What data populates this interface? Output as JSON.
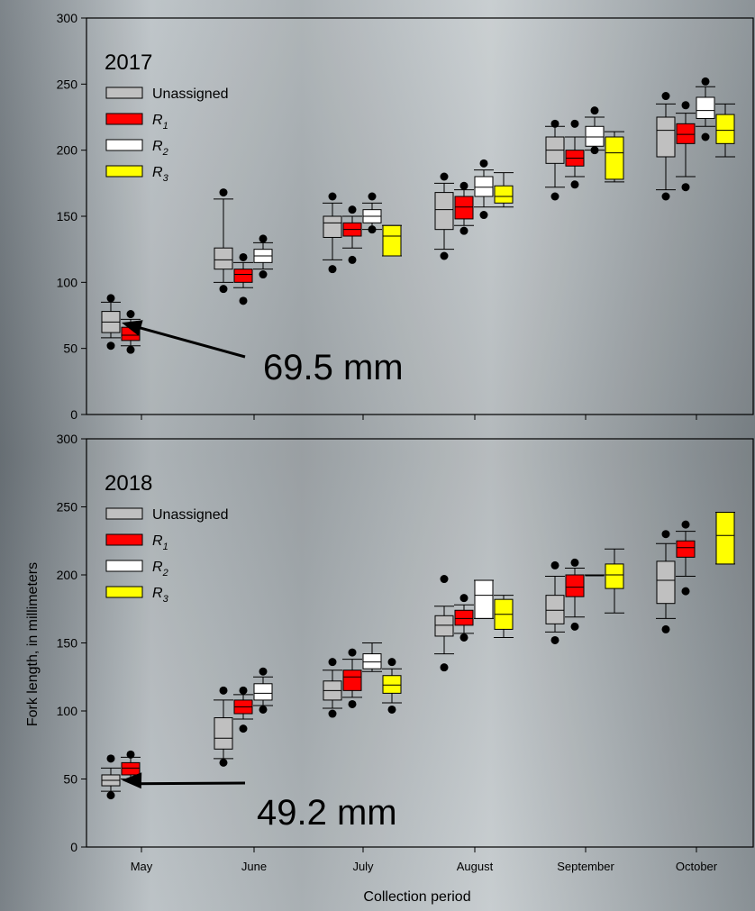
{
  "figure": {
    "ylabel": "Fork length, in millimeters",
    "xlabel": "Collection period",
    "colors": {
      "Unassigned": "#c0c0c0",
      "R1": "#ff0000",
      "R2": "#ffffff",
      "R3": "#ffff00"
    }
  },
  "legend_entries": [
    {
      "key": "Unassigned",
      "text": "Unassigned",
      "sub": ""
    },
    {
      "key": "R1",
      "text": "R",
      "sub": "1"
    },
    {
      "key": "R2",
      "text": "R",
      "sub": "2"
    },
    {
      "key": "R3",
      "text": "R",
      "sub": "3"
    }
  ],
  "chart_data": [
    {
      "type": "box",
      "title": "2017",
      "categories": [
        "May",
        "June",
        "July",
        "August",
        "September",
        "October"
      ],
      "yticks": [
        0,
        50,
        100,
        150,
        200,
        250,
        300
      ],
      "ylim": [
        0,
        300
      ],
      "annotation": {
        "text": "69.5 mm",
        "target": {
          "category": "May",
          "series": "Unassigned",
          "value": 69.5
        }
      },
      "series": [
        {
          "name": "Unassigned",
          "color": "#c0c0c0",
          "boxes": [
            {
              "category": "May",
              "q1": 62,
              "median": 70,
              "q3": 78,
              "whislo": 58,
              "whishi": 85,
              "fliers": [
                52,
                88
              ]
            },
            {
              "category": "June",
              "q1": 110,
              "median": 117,
              "q3": 126,
              "whislo": 100,
              "whishi": 163,
              "fliers": [
                95,
                168
              ]
            },
            {
              "category": "July",
              "q1": 134,
              "median": 145,
              "q3": 150,
              "whislo": 117,
              "whishi": 160,
              "fliers": [
                110,
                165
              ]
            },
            {
              "category": "August",
              "q1": 140,
              "median": 155,
              "q3": 168,
              "whislo": 125,
              "whishi": 175,
              "fliers": [
                120,
                180
              ]
            },
            {
              "category": "September",
              "q1": 190,
              "median": 200,
              "q3": 210,
              "whislo": 172,
              "whishi": 218,
              "fliers": [
                165,
                220
              ]
            },
            {
              "category": "October",
              "q1": 195,
              "median": 215,
              "q3": 225,
              "whislo": 170,
              "whishi": 235,
              "fliers": [
                165,
                241
              ]
            }
          ]
        },
        {
          "name": "R1",
          "color": "#ff0000",
          "boxes": [
            {
              "category": "May",
              "q1": 56,
              "median": 60,
              "q3": 66,
              "whislo": 52,
              "whishi": 72,
              "fliers": [
                49,
                76
              ]
            },
            {
              "category": "June",
              "q1": 100,
              "median": 106,
              "q3": 110,
              "whislo": 96,
              "whishi": 115,
              "fliers": [
                86,
                119
              ]
            },
            {
              "category": "July",
              "q1": 135,
              "median": 140,
              "q3": 145,
              "whislo": 126,
              "whishi": 150,
              "fliers": [
                117,
                155
              ]
            },
            {
              "category": "August",
              "q1": 148,
              "median": 157,
              "q3": 165,
              "whislo": 143,
              "whishi": 170,
              "fliers": [
                139,
                173
              ]
            },
            {
              "category": "September",
              "q1": 188,
              "median": 194,
              "q3": 200,
              "whislo": 180,
              "whishi": 210,
              "fliers": [
                174,
                220
              ]
            },
            {
              "category": "October",
              "q1": 205,
              "median": 212,
              "q3": 220,
              "whislo": 180,
              "whishi": 228,
              "fliers": [
                172,
                234
              ]
            }
          ]
        },
        {
          "name": "R2",
          "color": "#ffffff",
          "boxes": [
            {
              "category": "June",
              "q1": 115,
              "median": 120,
              "q3": 125,
              "whislo": 110,
              "whishi": 130,
              "fliers": [
                106,
                133
              ]
            },
            {
              "category": "July",
              "q1": 145,
              "median": 150,
              "q3": 155,
              "whislo": 140,
              "whishi": 160,
              "fliers": [
                140,
                165
              ]
            },
            {
              "category": "August",
              "q1": 165,
              "median": 172,
              "q3": 180,
              "whislo": 157,
              "whishi": 185,
              "fliers": [
                151,
                190
              ]
            },
            {
              "category": "September",
              "q1": 203,
              "median": 210,
              "q3": 218,
              "whislo": 200,
              "whishi": 225,
              "fliers": [
                200,
                230
              ]
            },
            {
              "category": "October",
              "q1": 224,
              "median": 230,
              "q3": 240,
              "whislo": 218,
              "whishi": 248,
              "fliers": [
                210,
                252
              ]
            }
          ]
        },
        {
          "name": "R3",
          "color": "#ffff00",
          "boxes": [
            {
              "category": "July",
              "q1": 120,
              "median": 135,
              "q3": 143,
              "whislo": 120,
              "whishi": 143,
              "fliers": []
            },
            {
              "category": "August",
              "q1": 160,
              "median": 165,
              "q3": 173,
              "whislo": 157,
              "whishi": 183,
              "fliers": []
            },
            {
              "category": "September",
              "q1": 178,
              "median": 198,
              "q3": 210,
              "whislo": 176,
              "whishi": 214,
              "fliers": []
            },
            {
              "category": "October",
              "q1": 205,
              "median": 215,
              "q3": 227,
              "whislo": 195,
              "whishi": 235,
              "fliers": []
            }
          ]
        }
      ]
    },
    {
      "type": "box",
      "title": "2018",
      "categories": [
        "May",
        "June",
        "July",
        "August",
        "September",
        "October"
      ],
      "yticks": [
        0,
        50,
        100,
        150,
        200,
        250,
        300
      ],
      "ylim": [
        0,
        300
      ],
      "annotation": {
        "text": "49.2 mm",
        "target": {
          "category": "May",
          "series": "Unassigned",
          "value": 49.2
        }
      },
      "series": [
        {
          "name": "Unassigned",
          "color": "#c0c0c0",
          "boxes": [
            {
              "category": "May",
              "q1": 45,
              "median": 49,
              "q3": 53,
              "whislo": 41,
              "whishi": 58,
              "fliers": [
                38,
                65
              ]
            },
            {
              "category": "June",
              "q1": 72,
              "median": 80,
              "q3": 95,
              "whislo": 65,
              "whishi": 108,
              "fliers": [
                62,
                115
              ]
            },
            {
              "category": "July",
              "q1": 108,
              "median": 115,
              "q3": 122,
              "whislo": 102,
              "whishi": 130,
              "fliers": [
                98,
                136
              ]
            },
            {
              "category": "August",
              "q1": 155,
              "median": 163,
              "q3": 170,
              "whislo": 142,
              "whishi": 177,
              "fliers": [
                132,
                197
              ]
            },
            {
              "category": "September",
              "q1": 164,
              "median": 174,
              "q3": 185,
              "whislo": 158,
              "whishi": 199,
              "fliers": [
                152,
                207
              ]
            },
            {
              "category": "October",
              "q1": 179,
              "median": 196,
              "q3": 210,
              "whislo": 168,
              "whishi": 223,
              "fliers": [
                160,
                230
              ]
            }
          ]
        },
        {
          "name": "R1",
          "color": "#ff0000",
          "boxes": [
            {
              "category": "May",
              "q1": 53,
              "median": 58,
              "q3": 62,
              "whislo": 50,
              "whishi": 66,
              "fliers": [
                68
              ]
            },
            {
              "category": "June",
              "q1": 98,
              "median": 103,
              "q3": 108,
              "whislo": 94,
              "whishi": 112,
              "fliers": [
                87,
                115
              ]
            },
            {
              "category": "July",
              "q1": 115,
              "median": 125,
              "q3": 130,
              "whislo": 110,
              "whishi": 138,
              "fliers": [
                105,
                143
              ]
            },
            {
              "category": "August",
              "q1": 163,
              "median": 168,
              "q3": 174,
              "whislo": 157,
              "whishi": 178,
              "fliers": [
                154,
                183
              ]
            },
            {
              "category": "September",
              "q1": 184,
              "median": 191,
              "q3": 200,
              "whislo": 169,
              "whishi": 205,
              "fliers": [
                162,
                209
              ]
            },
            {
              "category": "October",
              "q1": 213,
              "median": 220,
              "q3": 225,
              "whislo": 199,
              "whishi": 232,
              "fliers": [
                188,
                237
              ]
            }
          ]
        },
        {
          "name": "R2",
          "color": "#ffffff",
          "boxes": [
            {
              "category": "June",
              "q1": 108,
              "median": 113,
              "q3": 120,
              "whislo": 104,
              "whishi": 125,
              "fliers": [
                101,
                129
              ]
            },
            {
              "category": "July",
              "q1": 131,
              "median": 136,
              "q3": 142,
              "whislo": 129,
              "whishi": 150,
              "fliers": []
            },
            {
              "category": "August",
              "q1": 168,
              "median": 185,
              "q3": 196,
              "whislo": 168,
              "whishi": 196,
              "fliers": []
            },
            {
              "category": "September",
              "q1": 200,
              "median": 200,
              "q3": 200,
              "whislo": 200,
              "whishi": 200,
              "fliers": []
            }
          ]
        },
        {
          "name": "R3",
          "color": "#ffff00",
          "boxes": [
            {
              "category": "July",
              "q1": 113,
              "median": 119,
              "q3": 126,
              "whislo": 106,
              "whishi": 131,
              "fliers": [
                101,
                136
              ]
            },
            {
              "category": "August",
              "q1": 160,
              "median": 171,
              "q3": 182,
              "whislo": 154,
              "whishi": 185,
              "fliers": []
            },
            {
              "category": "September",
              "q1": 190,
              "median": 200,
              "q3": 208,
              "whislo": 172,
              "whishi": 219,
              "fliers": []
            },
            {
              "category": "October",
              "q1": 208,
              "median": 229,
              "q3": 246,
              "whislo": 208,
              "whishi": 246,
              "fliers": []
            }
          ]
        }
      ]
    }
  ]
}
